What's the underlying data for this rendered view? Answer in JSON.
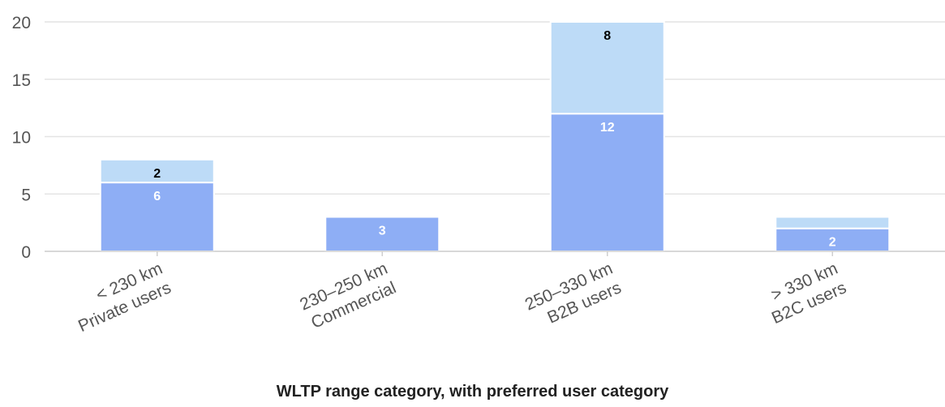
{
  "chart_data": {
    "type": "bar",
    "stacked": true,
    "title": "",
    "ylabel": "",
    "xlabel": "WLTP range category, with preferred user category",
    "categories": [
      [
        "< 230 km",
        "Private users"
      ],
      [
        "230–250 km",
        "Commercial"
      ],
      [
        "250–330 km",
        "B2B users"
      ],
      [
        "> 330 km",
        "B2C users"
      ]
    ],
    "series": [
      {
        "values": [
          6,
          3,
          12,
          2
        ],
        "labels": [
          "6",
          "3",
          "12",
          "2"
        ],
        "color": "#8eaef5",
        "label_color": "#ffffff"
      },
      {
        "values": [
          2,
          0,
          8,
          1
        ],
        "labels": [
          "2",
          "",
          "8",
          ""
        ],
        "color": "#bddbf7",
        "label_color": "#000000"
      }
    ],
    "ylim": [
      0,
      20
    ],
    "yticks": [
      0,
      5,
      10,
      15,
      20
    ],
    "grid": true,
    "legend": "none"
  }
}
